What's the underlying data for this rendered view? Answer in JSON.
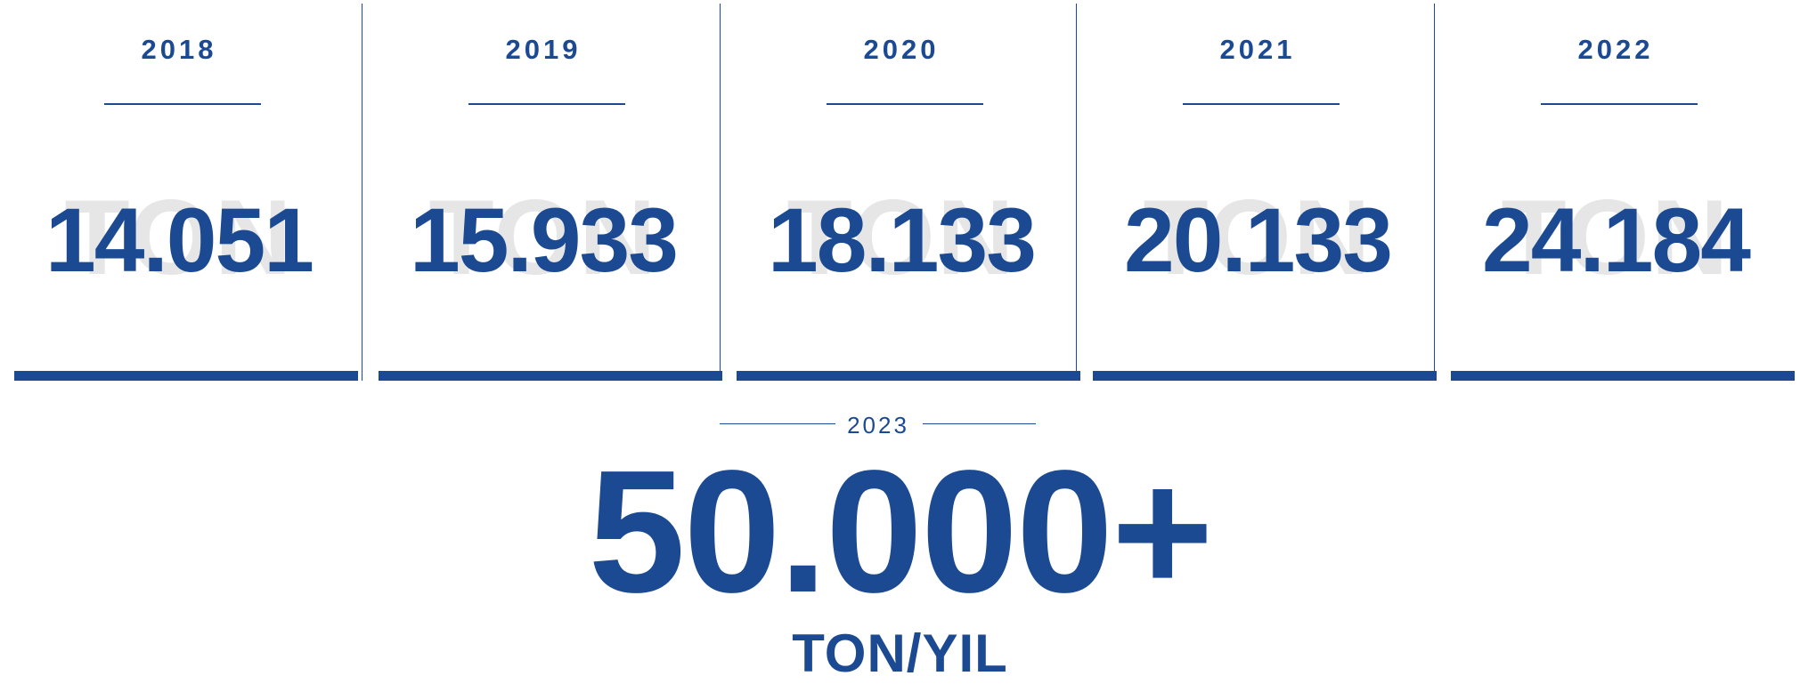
{
  "columns": [
    {
      "year": "2018",
      "value": "14.051",
      "watermark": "TON"
    },
    {
      "year": "2019",
      "value": "15.933",
      "watermark": "TON"
    },
    {
      "year": "2020",
      "value": "18.133",
      "watermark": "TON"
    },
    {
      "year": "2021",
      "value": "20.133",
      "watermark": "TON"
    },
    {
      "year": "2022",
      "value": "24.184",
      "watermark": "TON"
    }
  ],
  "highlight": {
    "year": "2023",
    "value": "50.000+",
    "unit": "TON/YIL"
  }
}
